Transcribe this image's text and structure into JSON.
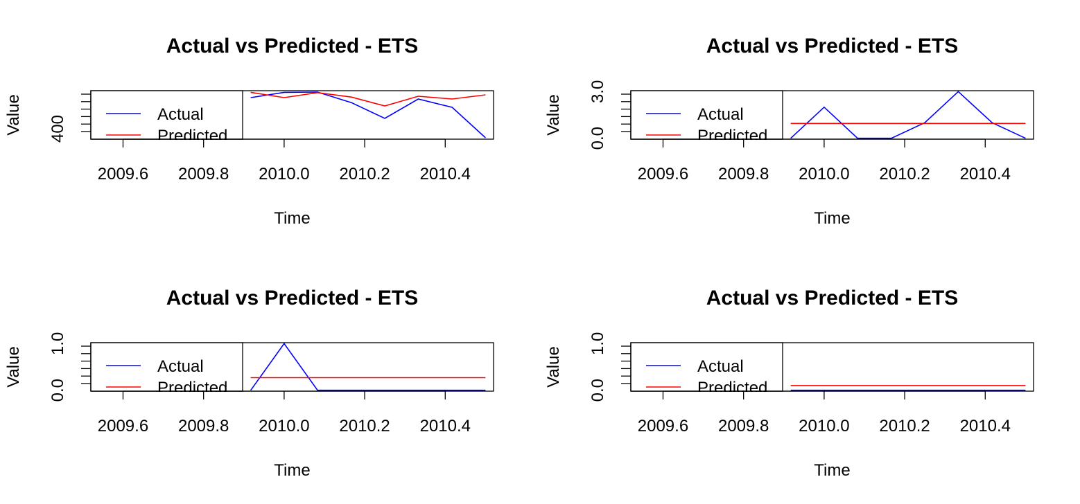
{
  "chart_data": [
    {
      "type": "line",
      "title": "Actual vs Predicted - ETS",
      "xlabel": "Time",
      "ylabel": "Value",
      "xlim": [
        2009.52,
        2010.52
      ],
      "xticks": [
        "2009.6",
        "2009.8",
        "2010.0",
        "2010.2",
        "2010.4"
      ],
      "ylim": [
        380,
        555
      ],
      "yticks": [
        "400"
      ],
      "x": [
        2009.917,
        2010.0,
        2010.083,
        2010.167,
        2010.25,
        2010.333,
        2010.417,
        2010.5
      ],
      "legend": {
        "position": "top-left",
        "entries": [
          "Actual",
          "Predicted"
        ]
      },
      "series": [
        {
          "name": "Actual",
          "color": "#0000ff",
          "values": [
            530,
            549,
            550,
            512,
            455,
            525,
            495,
            385
          ]
        },
        {
          "name": "Predicted",
          "color": "#ff0000",
          "values": [
            549,
            530,
            548,
            532,
            500,
            535,
            525,
            540
          ]
        }
      ]
    },
    {
      "type": "line",
      "title": "Actual vs Predicted - ETS",
      "xlabel": "Time",
      "ylabel": "Value",
      "xlim": [
        2009.52,
        2010.52
      ],
      "xticks": [
        "2009.6",
        "2009.8",
        "2010.0",
        "2010.2",
        "2010.4"
      ],
      "ylim": [
        -0.06,
        3.06
      ],
      "yticks": [
        "0.0",
        "3.0"
      ],
      "x": [
        2009.917,
        2010.0,
        2010.083,
        2010.167,
        2010.25,
        2010.333,
        2010.417,
        2010.5
      ],
      "legend": {
        "position": "top-left",
        "entries": [
          "Actual",
          "Predicted"
        ]
      },
      "series": [
        {
          "name": "Actual",
          "color": "#0000ff",
          "values": [
            0,
            2,
            0,
            0,
            1,
            3,
            1,
            0
          ]
        },
        {
          "name": "Predicted",
          "color": "#ff0000",
          "values": [
            0.95,
            0.95,
            0.95,
            0.95,
            0.95,
            0.95,
            0.95,
            0.95
          ]
        }
      ]
    },
    {
      "type": "line",
      "title": "Actual vs Predicted - ETS",
      "xlabel": "Time",
      "ylabel": "Value",
      "xlim": [
        2009.52,
        2010.52
      ],
      "xticks": [
        "2009.6",
        "2009.8",
        "2010.0",
        "2010.2",
        "2010.4"
      ],
      "ylim": [
        -0.02,
        1.02
      ],
      "yticks": [
        "0.0",
        "1.0"
      ],
      "x": [
        2009.917,
        2010.0,
        2010.083,
        2010.167,
        2010.25,
        2010.333,
        2010.417,
        2010.5
      ],
      "legend": {
        "position": "top-left",
        "entries": [
          "Actual",
          "Predicted"
        ]
      },
      "series": [
        {
          "name": "Actual",
          "color": "#0000ff",
          "values": [
            0,
            1,
            0,
            0,
            0,
            0,
            0,
            0
          ]
        },
        {
          "name": "Predicted",
          "color": "#ff0000",
          "values": [
            0.27,
            0.27,
            0.27,
            0.27,
            0.27,
            0.27,
            0.27,
            0.27
          ]
        }
      ]
    },
    {
      "type": "line",
      "title": "Actual vs Predicted - ETS",
      "xlabel": "Time",
      "ylabel": "Value",
      "xlim": [
        2009.52,
        2010.52
      ],
      "xticks": [
        "2009.6",
        "2009.8",
        "2010.0",
        "2010.2",
        "2010.4"
      ],
      "ylim": [
        -0.02,
        1.02
      ],
      "yticks": [
        "0.0",
        "1.0"
      ],
      "x": [
        2009.917,
        2010.0,
        2010.083,
        2010.167,
        2010.25,
        2010.333,
        2010.417,
        2010.5
      ],
      "legend": {
        "position": "top-left",
        "entries": [
          "Actual",
          "Predicted"
        ]
      },
      "series": [
        {
          "name": "Actual",
          "color": "#0000ff",
          "values": [
            0,
            0,
            0,
            0,
            0,
            0,
            0,
            0
          ]
        },
        {
          "name": "Predicted",
          "color": "#ff0000",
          "values": [
            0.1,
            0.1,
            0.1,
            0.1,
            0.1,
            0.1,
            0.1,
            0.1
          ]
        }
      ]
    }
  ]
}
